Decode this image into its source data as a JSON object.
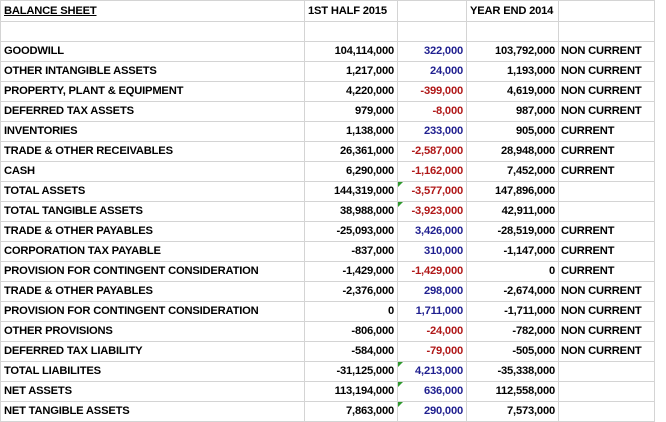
{
  "header": {
    "title": "BALANCE SHEET",
    "col_h1": "1ST HALF 2015",
    "col_ye": "YEAR END 2014"
  },
  "rows": [
    {
      "label": "GOODWILL",
      "h1": "104,114,000",
      "chg": "322,000",
      "chg_sign": "pos",
      "ye": "103,792,000",
      "cls": "NON CURRENT"
    },
    {
      "label": "OTHER INTANGIBLE ASSETS",
      "h1": "1,217,000",
      "chg": "24,000",
      "chg_sign": "pos",
      "ye": "1,193,000",
      "cls": "NON CURRENT"
    },
    {
      "label": "PROPERTY, PLANT & EQUIPMENT",
      "h1": "4,220,000",
      "chg": "-399,000",
      "chg_sign": "neg",
      "ye": "4,619,000",
      "cls": "NON CURRENT"
    },
    {
      "label": "DEFERRED TAX ASSETS",
      "h1": "979,000",
      "chg": "-8,000",
      "chg_sign": "neg",
      "ye": "987,000",
      "cls": "NON CURRENT"
    },
    {
      "label": "INVENTORIES",
      "h1": "1,138,000",
      "chg": "233,000",
      "chg_sign": "pos",
      "ye": "905,000",
      "cls": "CURRENT"
    },
    {
      "label": "TRADE & OTHER RECEIVABLES",
      "h1": "26,361,000",
      "chg": "-2,587,000",
      "chg_sign": "neg",
      "ye": "28,948,000",
      "cls": "CURRENT"
    },
    {
      "label": "CASH",
      "h1": "6,290,000",
      "chg": "-1,162,000",
      "chg_sign": "neg",
      "ye": "7,452,000",
      "cls": "CURRENT"
    },
    {
      "label": "TOTAL ASSETS",
      "h1": "144,319,000",
      "chg": "-3,577,000",
      "chg_sign": "neg",
      "ye": "147,896,000",
      "cls": "",
      "mark": true
    },
    {
      "label": "TOTAL TANGIBLE ASSETS",
      "h1": "38,988,000",
      "chg": "-3,923,000",
      "chg_sign": "neg",
      "ye": "42,911,000",
      "cls": "",
      "mark": true
    },
    {
      "label": "TRADE & OTHER PAYABLES",
      "h1": "-25,093,000",
      "chg": "3,426,000",
      "chg_sign": "pos",
      "ye": "-28,519,000",
      "cls": "CURRENT"
    },
    {
      "label": "CORPORATION TAX PAYABLE",
      "h1": "-837,000",
      "chg": "310,000",
      "chg_sign": "pos",
      "ye": "-1,147,000",
      "cls": "CURRENT"
    },
    {
      "label": "PROVISION FOR CONTINGENT CONSIDERATION",
      "h1": "-1,429,000",
      "chg": "-1,429,000",
      "chg_sign": "neg",
      "ye": "0",
      "cls": "CURRENT"
    },
    {
      "label": "TRADE & OTHER PAYABLES",
      "h1": "-2,376,000",
      "chg": "298,000",
      "chg_sign": "pos",
      "ye": "-2,674,000",
      "cls": "NON CURRENT"
    },
    {
      "label": "PROVISION FOR CONTINGENT CONSIDERATION",
      "h1": "0",
      "chg": "1,711,000",
      "chg_sign": "pos",
      "ye": "-1,711,000",
      "cls": "NON CURRENT"
    },
    {
      "label": "OTHER PROVISIONS",
      "h1": "-806,000",
      "chg": "-24,000",
      "chg_sign": "neg",
      "ye": "-782,000",
      "cls": "NON CURRENT"
    },
    {
      "label": "DEFERRED TAX LIABILITY",
      "h1": "-584,000",
      "chg": "-79,000",
      "chg_sign": "neg",
      "ye": "-505,000",
      "cls": "NON CURRENT"
    },
    {
      "label": "TOTAL LIABILITES",
      "h1": "-31,125,000",
      "chg": "4,213,000",
      "chg_sign": "pos",
      "ye": "-35,338,000",
      "cls": "",
      "mark": true
    },
    {
      "label": "NET ASSETS",
      "h1": "113,194,000",
      "chg": "636,000",
      "chg_sign": "pos",
      "ye": "112,558,000",
      "cls": "",
      "mark": true
    },
    {
      "label": "NET TANGIBLE ASSETS",
      "h1": "7,863,000",
      "chg": "290,000",
      "chg_sign": "pos",
      "ye": "7,573,000",
      "cls": "",
      "mark": true
    }
  ],
  "colors": {
    "positive_change": "#1f1f8f",
    "negative_change": "#b01818",
    "comment_marker": "#2e9a2e",
    "gridline": "#d4d4d4"
  }
}
